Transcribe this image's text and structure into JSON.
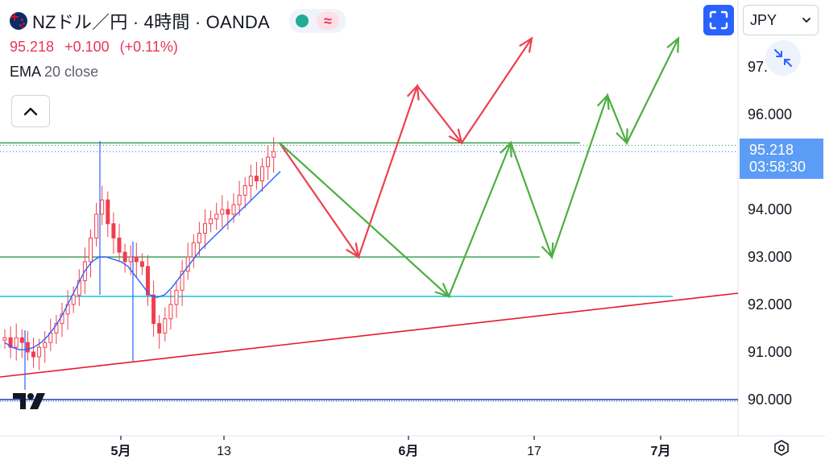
{
  "header": {
    "symbol_title": "NZドル／円 · 4時間 · OANDA",
    "price": "95.218",
    "change": "+0.100",
    "change_pct": "(+0.11%)",
    "indicator_name": "EMA",
    "indicator_params": "20 close"
  },
  "toolbar": {
    "currency": "JPY",
    "currency_chevron": "⌄"
  },
  "price_tag": {
    "price": "95.218",
    "countdown": "03:58:30"
  },
  "icons": {
    "flag": "nz-flag-icon",
    "market_status": "green-dot-icon",
    "wave": "wave-icon",
    "collapse": "chevron-up-icon",
    "fullscreen": "fullscreen-icon",
    "shrink": "shrink-arrows-icon",
    "settings": "settings-icon",
    "logo": "tradingview-logo"
  },
  "colors": {
    "up": "#ef3f4f",
    "down": "#ef3f4f",
    "ema": "#2962ff",
    "green_arrow": "#4caf3f",
    "red_arrow": "#ef3f4f",
    "trendline": "#e8172c",
    "cyan_line": "#00bcd4",
    "green_hline": "#1b8f3a",
    "navy_hline": "#1a3bbf",
    "price_tag": "#5b9cf6"
  },
  "chart_data": {
    "type": "candlestick",
    "y_axis": {
      "ticks": [
        "90.000",
        "91.000",
        "92.000",
        "93.000",
        "94.000",
        "96.000",
        "97.000"
      ],
      "range": [
        89.5,
        98.2
      ]
    },
    "x_axis": {
      "ticks": [
        "5月",
        "13",
        "6月",
        "17",
        "7月"
      ]
    },
    "horizontal_levels": [
      {
        "name": "green-resistance",
        "value": 95.4
      },
      {
        "name": "green-support",
        "value": 93.0
      },
      {
        "name": "cyan-support",
        "value": 92.17
      },
      {
        "name": "navy-level",
        "value": 90.0
      }
    ],
    "current_price": 95.218,
    "red_scenario_path": [
      {
        "t": 0,
        "v": 95.4
      },
      {
        "t": 1,
        "v": 93.0
      },
      {
        "t": 2,
        "v": 96.6
      },
      {
        "t": 3,
        "v": 95.4
      },
      {
        "t": 4,
        "v": 97.6
      }
    ],
    "green_scenario_path": [
      {
        "t": 0,
        "v": 95.4
      },
      {
        "t": 1,
        "v": 92.17
      },
      {
        "t": 2,
        "v": 95.4
      },
      {
        "t": 3,
        "v": 93.0
      },
      {
        "t": 4,
        "v": 96.4
      },
      {
        "t": 5,
        "v": 95.4
      },
      {
        "t": 6,
        "v": 97.6
      }
    ],
    "closes": [
      91.3,
      91.1,
      91.3,
      91.2,
      91.0,
      90.9,
      91.1,
      91.2,
      91.4,
      91.6,
      91.8,
      92.0,
      92.2,
      92.5,
      92.9,
      93.4,
      93.9,
      94.2,
      93.7,
      93.4,
      93.1,
      92.9,
      93.0,
      92.9,
      92.8,
      92.2,
      91.6,
      91.4,
      91.7,
      92.0,
      92.3,
      92.7,
      93.0,
      93.3,
      93.5,
      93.7,
      93.8,
      93.9,
      94.0,
      93.9,
      94.1,
      94.3,
      94.5,
      94.7,
      94.6,
      94.9,
      95.1,
      95.218
    ],
    "ema20": [
      91.2,
      91.1,
      91.05,
      91.05,
      91.1,
      91.2,
      91.35,
      91.55,
      91.8,
      92.1,
      92.4,
      92.7,
      92.9,
      93.0,
      93.0,
      92.95,
      92.9,
      92.8,
      92.6,
      92.4,
      92.2,
      92.15,
      92.2,
      92.35,
      92.55,
      92.75,
      92.95,
      93.15,
      93.3,
      93.45,
      93.6,
      93.75,
      93.9,
      94.05,
      94.2,
      94.35,
      94.5,
      94.65,
      94.8
    ]
  }
}
